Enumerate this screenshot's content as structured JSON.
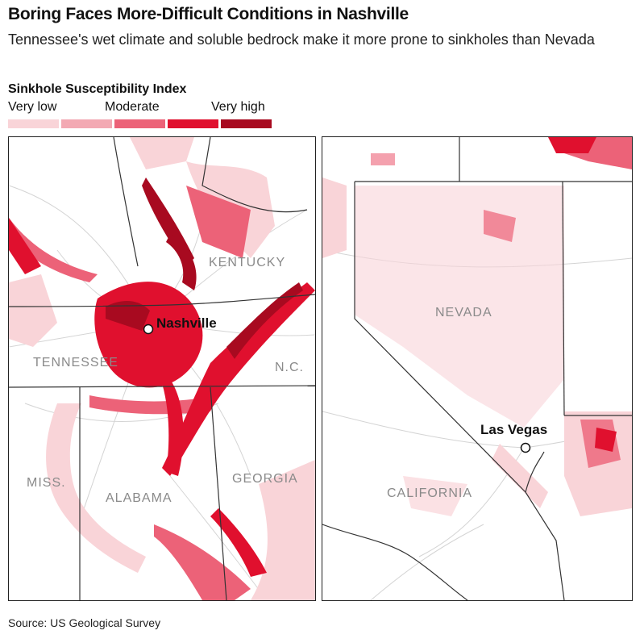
{
  "header": {
    "title": "Boring Faces More-Difficult Conditions in Nashville",
    "subtitle": "Tennessee's wet climate and soluble bedrock make it more prone to sinkholes than Nevada"
  },
  "legend": {
    "title": "Sinkhole Susceptibility Index",
    "labels": [
      "Very low",
      "Moderate",
      "Very high"
    ],
    "colors": [
      "#f9d4d8",
      "#f3a9b3",
      "#ec6278",
      "#e0102e",
      "#a80a20"
    ]
  },
  "maps": {
    "east": {
      "states": [
        "KENTUCKY",
        "TENNESSEE",
        "N.C.",
        "MISS.",
        "ALABAMA",
        "GEORGIA"
      ],
      "city": "Nashville"
    },
    "west": {
      "states": [
        "NEVADA",
        "CALIFORNIA"
      ],
      "city": "Las Vegas"
    }
  },
  "footer": {
    "source": "Source: US Geological Survey"
  }
}
